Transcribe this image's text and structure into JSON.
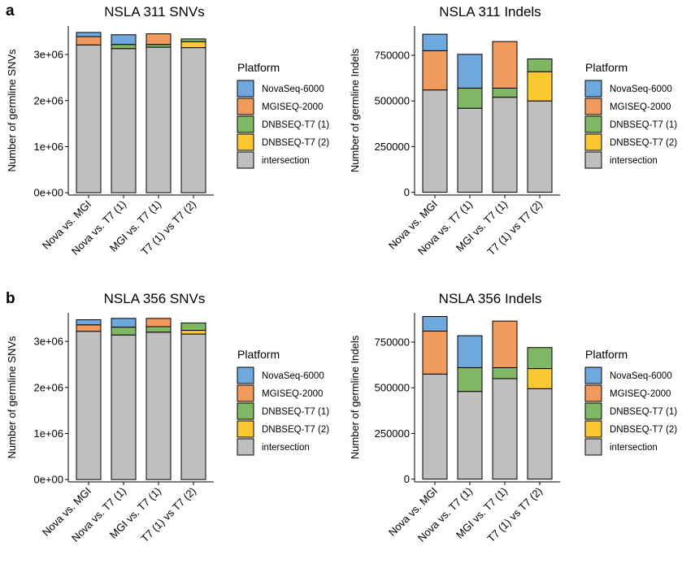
{
  "panel_labels": [
    "a",
    "b"
  ],
  "legend": {
    "title": "Platform",
    "items": [
      {
        "label": "NovaSeq-6000",
        "color": "#6fa8dc"
      },
      {
        "label": "MGISEQ-2000",
        "color": "#f09a5e"
      },
      {
        "label": "DNBSEQ-T7 (1)",
        "color": "#7fb765"
      },
      {
        "label": "DNBSEQ-T7 (2)",
        "color": "#fcc932"
      },
      {
        "label": "intersection",
        "color": "#bfbfbf"
      }
    ]
  },
  "chart_data": [
    {
      "type": "bar",
      "stacked": true,
      "title": "NSLA 311 SNVs",
      "ylabel": "Number of germline SNVs",
      "categories": [
        "Nova vs. MGI",
        "Nova vs. T7 (1)",
        "MGI vs. T7 (1)",
        "T7 (1) vs T7 (2)"
      ],
      "yticks": [
        0,
        1000000,
        2000000,
        3000000
      ],
      "ytick_labels": [
        "0e+00",
        "1e+06",
        "2e+06",
        "3e+06"
      ],
      "ylim": [
        -50000,
        3620000
      ],
      "series": [
        {
          "name": "intersection",
          "values": [
            3210000,
            3130000,
            3160000,
            3150000
          ]
        },
        {
          "name": "DNBSEQ-T7 (2)",
          "values": [
            0,
            0,
            0,
            130000
          ]
        },
        {
          "name": "DNBSEQ-T7 (1)",
          "values": [
            0,
            90000,
            60000,
            60000
          ]
        },
        {
          "name": "MGISEQ-2000",
          "values": [
            180000,
            0,
            230000,
            0
          ]
        },
        {
          "name": "NovaSeq-6000",
          "values": [
            90000,
            210000,
            0,
            0
          ]
        }
      ]
    },
    {
      "type": "bar",
      "stacked": true,
      "title": "NSLA 311 Indels",
      "ylabel": "Number of germline Indels",
      "categories": [
        "Nova vs. MGI",
        "Nova vs. T7 (1)",
        "MGI vs. T7 (1)",
        "T7 (1) vs T7 (2)"
      ],
      "yticks": [
        0,
        250000,
        500000,
        750000
      ],
      "ytick_labels": [
        "0",
        "250000",
        "500000",
        "750000"
      ],
      "ylim": [
        -15000,
        910000
      ],
      "series": [
        {
          "name": "intersection",
          "values": [
            560000,
            460000,
            520000,
            500000
          ]
        },
        {
          "name": "DNBSEQ-T7 (2)",
          "values": [
            0,
            0,
            0,
            160000
          ]
        },
        {
          "name": "DNBSEQ-T7 (1)",
          "values": [
            0,
            110000,
            50000,
            70000
          ]
        },
        {
          "name": "MGISEQ-2000",
          "values": [
            215000,
            0,
            255000,
            0
          ]
        },
        {
          "name": "NovaSeq-6000",
          "values": [
            90000,
            185000,
            0,
            0
          ]
        }
      ]
    },
    {
      "type": "bar",
      "stacked": true,
      "title": "NSLA 356 SNVs",
      "ylabel": "Number of germline SNVs",
      "categories": [
        "Nova vs. MGI",
        "Nova vs. T7 (1)",
        "MGI vs. T7 (1)",
        "T7 (1) vs T7 (2)"
      ],
      "yticks": [
        0,
        1000000,
        2000000,
        3000000
      ],
      "ytick_labels": [
        "0e+00",
        "1e+06",
        "2e+06",
        "3e+06"
      ],
      "ylim": [
        -50000,
        3620000
      ],
      "series": [
        {
          "name": "intersection",
          "values": [
            3220000,
            3140000,
            3200000,
            3160000
          ]
        },
        {
          "name": "DNBSEQ-T7 (2)",
          "values": [
            0,
            0,
            0,
            80000
          ]
        },
        {
          "name": "DNBSEQ-T7 (1)",
          "values": [
            0,
            170000,
            120000,
            160000
          ]
        },
        {
          "name": "MGISEQ-2000",
          "values": [
            140000,
            0,
            180000,
            0
          ]
        },
        {
          "name": "NovaSeq-6000",
          "values": [
            110000,
            190000,
            0,
            0
          ]
        }
      ]
    },
    {
      "type": "bar",
      "stacked": true,
      "title": "NSLA 356 Indels",
      "ylabel": "Number of germline Indels",
      "categories": [
        "Nova vs. MGI",
        "Nova vs. T7 (1)",
        "MGI vs. T7 (1)",
        "T7 (1) vs T7 (2)"
      ],
      "yticks": [
        0,
        250000,
        500000,
        750000
      ],
      "ytick_labels": [
        "0",
        "250000",
        "500000",
        "750000"
      ],
      "ylim": [
        -15000,
        910000
      ],
      "series": [
        {
          "name": "intersection",
          "values": [
            575000,
            480000,
            550000,
            495000
          ]
        },
        {
          "name": "DNBSEQ-T7 (2)",
          "values": [
            0,
            0,
            0,
            110000
          ]
        },
        {
          "name": "DNBSEQ-T7 (1)",
          "values": [
            0,
            130000,
            60000,
            115000
          ]
        },
        {
          "name": "MGISEQ-2000",
          "values": [
            235000,
            0,
            255000,
            0
          ]
        },
        {
          "name": "NovaSeq-6000",
          "values": [
            80000,
            175000,
            0,
            0
          ]
        }
      ]
    }
  ]
}
